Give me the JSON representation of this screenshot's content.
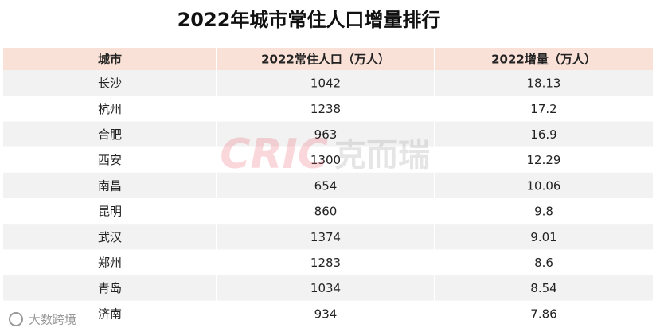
{
  "title": "2022年城市常住人口增量排行",
  "table": {
    "header": [
      "城市",
      "2022常住人口（万人）",
      "2022增量（万人）"
    ],
    "rows": [
      [
        "长沙",
        "1042",
        "18.13"
      ],
      [
        "杭州",
        "1238",
        "17.2"
      ],
      [
        "合肥",
        "963",
        "16.9"
      ],
      [
        "西安",
        "1300",
        "12.29"
      ],
      [
        "南昌",
        "654",
        "10.06"
      ],
      [
        "昆明",
        "860",
        "9.8"
      ],
      [
        "武汉",
        "1374",
        "9.01"
      ],
      [
        "郑州",
        "1283",
        "8.6"
      ],
      [
        "青岛",
        "1034",
        "8.54"
      ],
      [
        "济南",
        "934",
        "7.86"
      ]
    ]
  },
  "watermark": {
    "logo": "CRIC",
    "brand": "克而瑞",
    "source": "大数跨境"
  }
}
